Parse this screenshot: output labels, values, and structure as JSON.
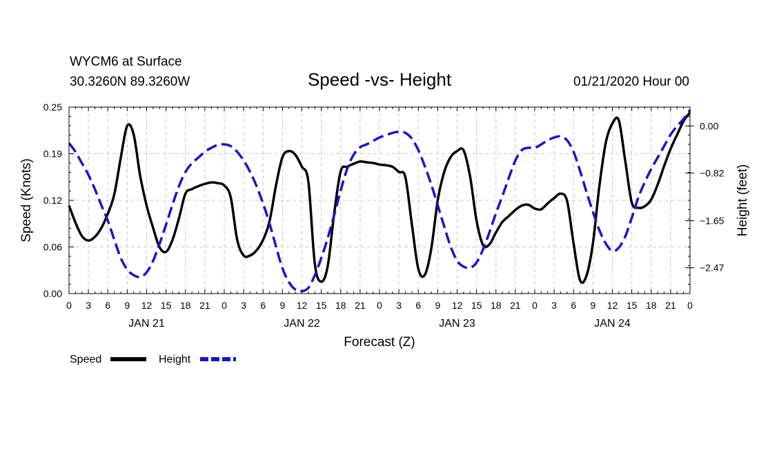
{
  "header": {
    "station": "WYCM6 at Surface",
    "coords": "30.3260N 89.3260W",
    "title": "Speed -vs- Height",
    "run": "01/21/2020 Hour 00"
  },
  "legend": {
    "speed_label": "Speed",
    "height_label": "Height"
  },
  "colors": {
    "speed": "#000000",
    "height": "#1616c8",
    "grid": "#c8c8c8"
  },
  "chart_data": {
    "type": "line",
    "title": "Speed -vs- Height",
    "xlabel": "Forecast (Z)",
    "ylabel": "Speed (Knots)",
    "y2label": "Height (feet)",
    "xlim": [
      0,
      96
    ],
    "ylim": [
      0,
      0.25
    ],
    "y2lim": [
      -2.92,
      0.33
    ],
    "x_tick_step": 3,
    "x_tick_labels": [
      "0",
      "3",
      "6",
      "9",
      "12",
      "15",
      "18",
      "21",
      "0",
      "3",
      "6",
      "9",
      "12",
      "15",
      "18",
      "21",
      "0",
      "3",
      "6",
      "9",
      "12",
      "15",
      "18",
      "21",
      "0",
      "3",
      "6",
      "9",
      "12",
      "15",
      "18",
      "21",
      "0"
    ],
    "day_labels": [
      {
        "x": 12,
        "label": "JAN 21"
      },
      {
        "x": 36,
        "label": "JAN 22"
      },
      {
        "x": 60,
        "label": "JAN 23"
      },
      {
        "x": 84,
        "label": "JAN 24"
      }
    ],
    "y_ticks": [
      {
        "value": 0,
        "label": "0.00"
      },
      {
        "value": 0.0625,
        "label": "0.06"
      },
      {
        "value": 0.125,
        "label": "0.12"
      },
      {
        "value": 0.1875,
        "label": "0.19"
      },
      {
        "value": 0.25,
        "label": "0.25"
      }
    ],
    "y2_ticks": [
      {
        "value": 0.0,
        "label": "0.00"
      },
      {
        "value": -0.82,
        "label": "−0.82"
      },
      {
        "value": -1.65,
        "label": "−1.65"
      },
      {
        "value": -2.47,
        "label": "−2.47"
      }
    ],
    "series": [
      {
        "name": "Speed",
        "axis": "left",
        "style": "solid",
        "points": [
          [
            0,
            0.118
          ],
          [
            1,
            0.095
          ],
          [
            2,
            0.077
          ],
          [
            3,
            0.071
          ],
          [
            4,
            0.076
          ],
          [
            5,
            0.088
          ],
          [
            6,
            0.107
          ],
          [
            7,
            0.133
          ],
          [
            8,
            0.182
          ],
          [
            9,
            0.225
          ],
          [
            10,
            0.213
          ],
          [
            11,
            0.158
          ],
          [
            12,
            0.118
          ],
          [
            13,
            0.088
          ],
          [
            14,
            0.062
          ],
          [
            15,
            0.056
          ],
          [
            16,
            0.072
          ],
          [
            17,
            0.101
          ],
          [
            18,
            0.134
          ],
          [
            19,
            0.14
          ],
          [
            20,
            0.144
          ],
          [
            21,
            0.147
          ],
          [
            22,
            0.149
          ],
          [
            23,
            0.148
          ],
          [
            24,
            0.145
          ],
          [
            25,
            0.129
          ],
          [
            26,
            0.072
          ],
          [
            27,
            0.051
          ],
          [
            28,
            0.051
          ],
          [
            29,
            0.058
          ],
          [
            30,
            0.072
          ],
          [
            31,
            0.097
          ],
          [
            32,
            0.145
          ],
          [
            33,
            0.183
          ],
          [
            34,
            0.191
          ],
          [
            35,
            0.186
          ],
          [
            36,
            0.17
          ],
          [
            37,
            0.15
          ],
          [
            38,
            0.04
          ],
          [
            39,
            0.016
          ],
          [
            40,
            0.037
          ],
          [
            41,
            0.108
          ],
          [
            42,
            0.164
          ],
          [
            43,
            0.17
          ],
          [
            44,
            0.174
          ],
          [
            45,
            0.177
          ],
          [
            46,
            0.176
          ],
          [
            47,
            0.175
          ],
          [
            48,
            0.173
          ],
          [
            49,
            0.172
          ],
          [
            50,
            0.17
          ],
          [
            51,
            0.163
          ],
          [
            52,
            0.156
          ],
          [
            53,
            0.093
          ],
          [
            54,
            0.033
          ],
          [
            55,
            0.025
          ],
          [
            56,
            0.06
          ],
          [
            57,
            0.125
          ],
          [
            58,
            0.163
          ],
          [
            59,
            0.183
          ],
          [
            60,
            0.191
          ],
          [
            61,
            0.192
          ],
          [
            62,
            0.157
          ],
          [
            63,
            0.098
          ],
          [
            64,
            0.065
          ],
          [
            65,
            0.066
          ],
          [
            66,
            0.082
          ],
          [
            67,
            0.096
          ],
          [
            68,
            0.104
          ],
          [
            69,
            0.112
          ],
          [
            70,
            0.118
          ],
          [
            71,
            0.119
          ],
          [
            72,
            0.114
          ],
          [
            73,
            0.113
          ],
          [
            74,
            0.121
          ],
          [
            75,
            0.128
          ],
          [
            76,
            0.134
          ],
          [
            77,
            0.124
          ],
          [
            78,
            0.067
          ],
          [
            79,
            0.018
          ],
          [
            80,
            0.024
          ],
          [
            81,
            0.068
          ],
          [
            82,
            0.145
          ],
          [
            83,
            0.203
          ],
          [
            84,
            0.228
          ],
          [
            85,
            0.232
          ],
          [
            86,
            0.177
          ],
          [
            87,
            0.122
          ],
          [
            88,
            0.115
          ],
          [
            89,
            0.117
          ],
          [
            90,
            0.126
          ],
          [
            91,
            0.146
          ],
          [
            92,
            0.171
          ],
          [
            93,
            0.194
          ],
          [
            94,
            0.213
          ],
          [
            95,
            0.231
          ],
          [
            96,
            0.243
          ]
        ]
      },
      {
        "name": "Height",
        "axis": "right",
        "style": "dashed",
        "points": [
          [
            0,
            -0.3
          ],
          [
            1,
            -0.45
          ],
          [
            2,
            -0.65
          ],
          [
            3,
            -0.85
          ],
          [
            4,
            -1.1
          ],
          [
            5,
            -1.38
          ],
          [
            6,
            -1.65
          ],
          [
            7,
            -1.98
          ],
          [
            8,
            -2.3
          ],
          [
            9,
            -2.5
          ],
          [
            10,
            -2.6
          ],
          [
            11,
            -2.63
          ],
          [
            12,
            -2.55
          ],
          [
            13,
            -2.35
          ],
          [
            14,
            -2.05
          ],
          [
            15,
            -1.72
          ],
          [
            16,
            -1.37
          ],
          [
            17,
            -1.05
          ],
          [
            18,
            -0.8
          ],
          [
            19,
            -0.65
          ],
          [
            20,
            -0.55
          ],
          [
            21,
            -0.45
          ],
          [
            22,
            -0.38
          ],
          [
            23,
            -0.33
          ],
          [
            24,
            -0.32
          ],
          [
            25,
            -0.35
          ],
          [
            26,
            -0.45
          ],
          [
            27,
            -0.6
          ],
          [
            28,
            -0.8
          ],
          [
            29,
            -1.05
          ],
          [
            30,
            -1.35
          ],
          [
            31,
            -1.7
          ],
          [
            32,
            -2.1
          ],
          [
            33,
            -2.48
          ],
          [
            34,
            -2.72
          ],
          [
            35,
            -2.85
          ],
          [
            36,
            -2.88
          ],
          [
            37,
            -2.82
          ],
          [
            38,
            -2.6
          ],
          [
            39,
            -2.3
          ],
          [
            40,
            -1.95
          ],
          [
            41,
            -1.55
          ],
          [
            42,
            -1.12
          ],
          [
            43,
            -0.75
          ],
          [
            44,
            -0.5
          ],
          [
            45,
            -0.37
          ],
          [
            46,
            -0.32
          ],
          [
            47,
            -0.26
          ],
          [
            48,
            -0.2
          ],
          [
            49,
            -0.16
          ],
          [
            50,
            -0.12
          ],
          [
            51,
            -0.1
          ],
          [
            52,
            -0.12
          ],
          [
            53,
            -0.22
          ],
          [
            54,
            -0.42
          ],
          [
            55,
            -0.7
          ],
          [
            56,
            -1.02
          ],
          [
            57,
            -1.38
          ],
          [
            58,
            -1.75
          ],
          [
            59,
            -2.1
          ],
          [
            60,
            -2.35
          ],
          [
            61,
            -2.45
          ],
          [
            62,
            -2.47
          ],
          [
            63,
            -2.38
          ],
          [
            64,
            -2.15
          ],
          [
            65,
            -1.85
          ],
          [
            66,
            -1.52
          ],
          [
            67,
            -1.22
          ],
          [
            68,
            -0.9
          ],
          [
            69,
            -0.6
          ],
          [
            70,
            -0.42
          ],
          [
            71,
            -0.38
          ],
          [
            72,
            -0.38
          ],
          [
            73,
            -0.32
          ],
          [
            74,
            -0.25
          ],
          [
            75,
            -0.2
          ],
          [
            76,
            -0.18
          ],
          [
            77,
            -0.25
          ],
          [
            78,
            -0.45
          ],
          [
            79,
            -0.78
          ],
          [
            80,
            -1.15
          ],
          [
            81,
            -1.5
          ],
          [
            82,
            -1.82
          ],
          [
            83,
            -2.05
          ],
          [
            84,
            -2.18
          ],
          [
            85,
            -2.12
          ],
          [
            86,
            -1.92
          ],
          [
            87,
            -1.6
          ],
          [
            88,
            -1.25
          ],
          [
            89,
            -0.98
          ],
          [
            90,
            -0.75
          ],
          [
            91,
            -0.55
          ],
          [
            92,
            -0.35
          ],
          [
            93,
            -0.15
          ],
          [
            94,
            0.0
          ],
          [
            95,
            0.12
          ],
          [
            96,
            0.28
          ]
        ]
      }
    ]
  }
}
